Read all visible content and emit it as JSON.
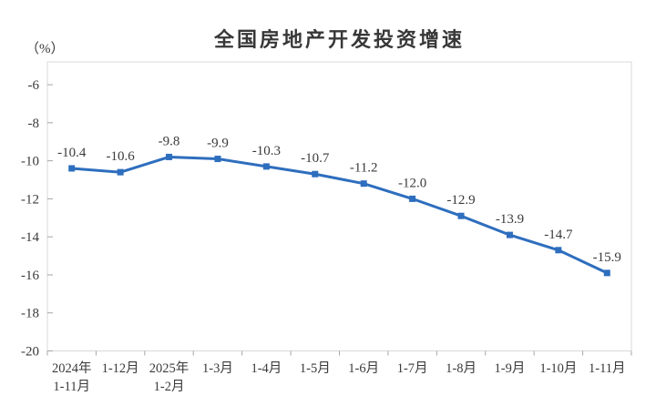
{
  "chart_data": {
    "type": "line",
    "title": "全国房地产开发投资增速",
    "unit_label": "（%）",
    "categories": [
      [
        "2024年",
        "1-11月"
      ],
      [
        "1-12月"
      ],
      [
        "2025年",
        "1-2月"
      ],
      [
        "1-3月"
      ],
      [
        "1-4月"
      ],
      [
        "1-5月"
      ],
      [
        "1-6月"
      ],
      [
        "1-7月"
      ],
      [
        "1-8月"
      ],
      [
        "1-9月"
      ],
      [
        "1-10月"
      ],
      [
        "1-11月"
      ]
    ],
    "values": [
      -10.4,
      -10.6,
      -9.8,
      -9.9,
      -10.3,
      -10.7,
      -11.2,
      -12.0,
      -12.9,
      -13.9,
      -14.7,
      -15.9
    ],
    "point_labels": [
      "-10.4",
      "-10.6",
      "-9.8",
      "-9.9",
      "-10.3",
      "-10.7",
      "-11.2",
      "-12.0",
      "-12.9",
      "-13.9",
      "-14.7",
      "-15.9"
    ],
    "yticks": [
      -6,
      -8,
      -10,
      -12,
      -14,
      -16,
      -18,
      -20
    ],
    "ylim": [
      -20,
      -4.8
    ],
    "grid": false,
    "legend": "none",
    "colors": {
      "line": "#2E6EBE",
      "marker": "#2E6EBE",
      "text": "#3A3A3A",
      "plot_border": "#D9D9D9",
      "tick": "#A6A6A6",
      "background": "#FFFFFF"
    }
  }
}
